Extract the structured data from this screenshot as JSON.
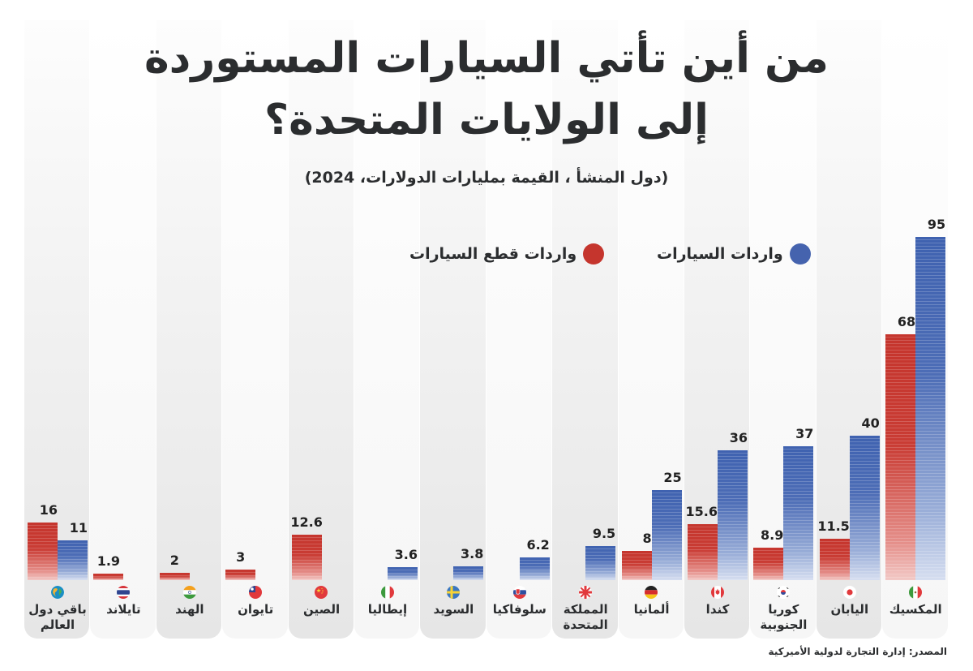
{
  "header": {
    "title_line1": "من أين تأتي السيارات  المستوردة",
    "title_line2": "إلى الولايات المتحدة؟",
    "subtitle": "(دول المنشأ ، القيمة بمليارات الدولارات، 2024)"
  },
  "legend": {
    "car_imports": "واردات السيارات",
    "parts_imports": "واردات قطع السيارات"
  },
  "colors": {
    "car_imports": "#3f62b0",
    "parts_imports": "#c5352d"
  },
  "source": "المصدر: إدارة التجارة لدولية الأميركية",
  "chart_data": {
    "type": "bar",
    "title": "من أين تأتي السيارات  المستوردة إلى الولايات المتحدة؟",
    "subtitle": "(دول المنشأ ، القيمة بمليارات الدولارات، 2024)",
    "xlabel": "",
    "ylabel": "",
    "ylim": [
      0,
      95
    ],
    "grid": false,
    "legend_position": "top-right",
    "categories": [
      {
        "label_line1": "باقي دول",
        "label_line2": "العالم",
        "flag": "globe-icon"
      },
      {
        "label_line1": "تايلاند",
        "label_line2": "",
        "flag": "thailand-flag-icon"
      },
      {
        "label_line1": "الهند",
        "label_line2": "",
        "flag": "india-flag-icon"
      },
      {
        "label_line1": "تايوان",
        "label_line2": "",
        "flag": "taiwan-flag-icon"
      },
      {
        "label_line1": "الصين",
        "label_line2": "",
        "flag": "china-flag-icon"
      },
      {
        "label_line1": "إيطاليا",
        "label_line2": "",
        "flag": "italy-flag-icon"
      },
      {
        "label_line1": "السويد",
        "label_line2": "",
        "flag": "sweden-flag-icon"
      },
      {
        "label_line1": "سلوفاكيا",
        "label_line2": "",
        "flag": "slovakia-flag-icon"
      },
      {
        "label_line1": "المملكة",
        "label_line2": "المتحدة",
        "flag": "uk-flag-icon"
      },
      {
        "label_line1": "ألمانيا",
        "label_line2": "",
        "flag": "germany-flag-icon"
      },
      {
        "label_line1": "كندا",
        "label_line2": "",
        "flag": "canada-flag-icon"
      },
      {
        "label_line1": "كوريا",
        "label_line2": "الجنوبية",
        "flag": "south-korea-flag-icon"
      },
      {
        "label_line1": "اليابان",
        "label_line2": "",
        "flag": "japan-flag-icon"
      },
      {
        "label_line1": "المكسيك",
        "label_line2": "",
        "flag": "mexico-flag-icon"
      }
    ],
    "series": [
      {
        "name": "واردات قطع السيارات",
        "color": "#c5352d",
        "values": [
          16,
          1.9,
          2,
          3,
          12.6,
          null,
          null,
          null,
          null,
          8,
          15.6,
          8.9,
          11.5,
          68
        ],
        "labels": [
          "16",
          "1.9",
          "2",
          "3",
          "12.6",
          "",
          "",
          "",
          "",
          "8",
          "15.6",
          "8.9",
          "11.5",
          "68"
        ]
      },
      {
        "name": "واردات السيارات",
        "color": "#3f62b0",
        "values": [
          11,
          null,
          null,
          null,
          null,
          3.6,
          3.8,
          6.2,
          9.5,
          25,
          36,
          37,
          40,
          95
        ],
        "labels": [
          "11",
          "",
          "",
          "",
          "",
          "3.6",
          "3.8",
          "6.2",
          "9.5",
          "25",
          "36",
          "37",
          "40",
          "95"
        ]
      }
    ]
  }
}
